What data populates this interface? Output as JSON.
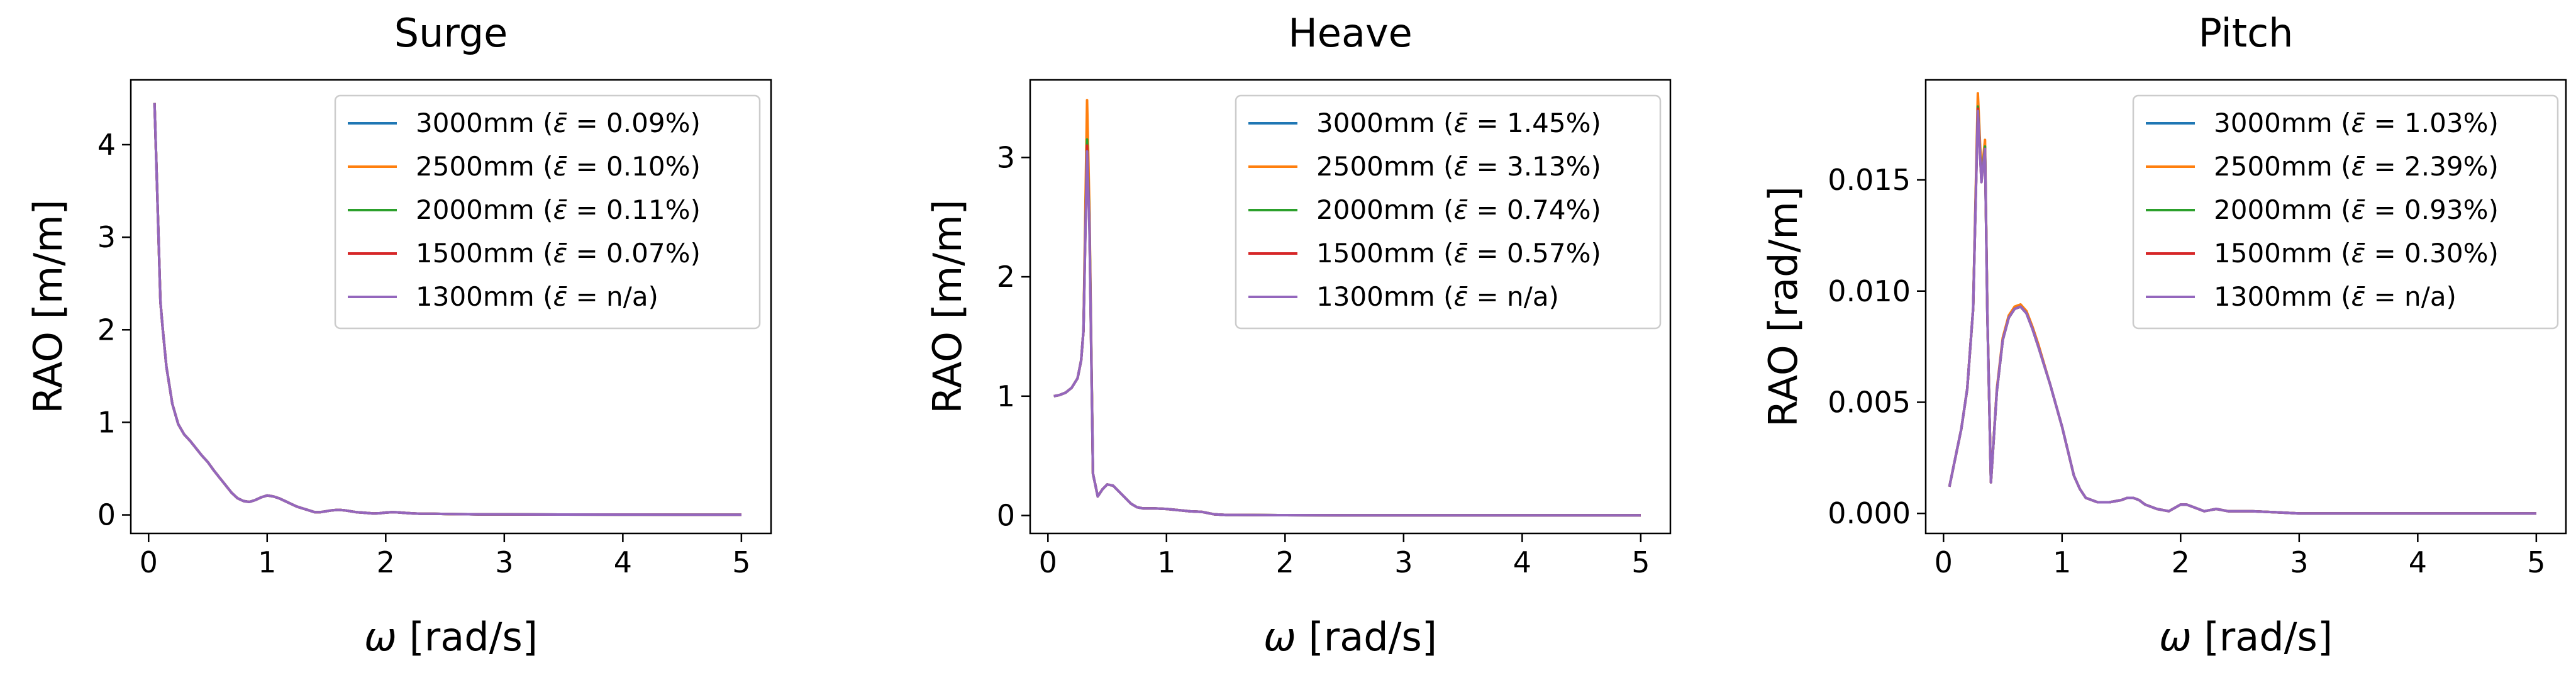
{
  "chart_data": [
    {
      "type": "line",
      "title": "Surge",
      "xlabel": "ω [rad/s]",
      "ylabel": "RAO [m/m]",
      "xlim": [
        -0.15,
        5.25
      ],
      "ylim": [
        -0.2,
        4.7
      ],
      "xticks": [
        "0",
        "1",
        "2",
        "3",
        "4",
        "5"
      ],
      "yticks": [
        "0",
        "1",
        "2",
        "3",
        "4"
      ],
      "legend_position": "upper right",
      "grid": false,
      "x": [
        0.05,
        0.07,
        0.1,
        0.12,
        0.15,
        0.2,
        0.25,
        0.3,
        0.35,
        0.4,
        0.45,
        0.5,
        0.55,
        0.6,
        0.65,
        0.7,
        0.75,
        0.8,
        0.85,
        0.9,
        0.95,
        1.0,
        1.05,
        1.1,
        1.15,
        1.2,
        1.25,
        1.3,
        1.35,
        1.4,
        1.45,
        1.5,
        1.55,
        1.6,
        1.65,
        1.7,
        1.75,
        1.8,
        1.85,
        1.9,
        1.95,
        2.0,
        2.05,
        2.1,
        2.15,
        2.2,
        2.25,
        2.3,
        2.4,
        2.5,
        2.6,
        2.7,
        2.8,
        3.0,
        3.5,
        4.0,
        4.5,
        5.0
      ],
      "series": [
        {
          "name": "3000mm ($\\bar{\\varepsilon}$ = 0.09%)",
          "color": "#1f77b4",
          "values": [
            4.45,
            3.6,
            2.3,
            2.0,
            1.6,
            1.2,
            0.98,
            0.87,
            0.8,
            0.72,
            0.64,
            0.57,
            0.48,
            0.4,
            0.32,
            0.24,
            0.18,
            0.15,
            0.14,
            0.16,
            0.19,
            0.21,
            0.2,
            0.18,
            0.15,
            0.12,
            0.09,
            0.07,
            0.05,
            0.03,
            0.03,
            0.04,
            0.05,
            0.055,
            0.05,
            0.04,
            0.03,
            0.025,
            0.02,
            0.015,
            0.018,
            0.025,
            0.03,
            0.028,
            0.022,
            0.018,
            0.015,
            0.012,
            0.012,
            0.01,
            0.008,
            0.007,
            0.006,
            0.005,
            0.004,
            0.003,
            0.002,
            0.002
          ]
        },
        {
          "name": "2500mm ($\\bar{\\varepsilon}$ = 0.10%)",
          "color": "#ff7f0e",
          "values": [
            4.45,
            3.6,
            2.3,
            2.0,
            1.6,
            1.2,
            0.98,
            0.87,
            0.8,
            0.72,
            0.64,
            0.57,
            0.48,
            0.4,
            0.32,
            0.24,
            0.18,
            0.15,
            0.14,
            0.16,
            0.19,
            0.21,
            0.2,
            0.18,
            0.15,
            0.12,
            0.09,
            0.07,
            0.05,
            0.03,
            0.03,
            0.04,
            0.05,
            0.055,
            0.05,
            0.04,
            0.03,
            0.025,
            0.02,
            0.015,
            0.018,
            0.025,
            0.03,
            0.028,
            0.022,
            0.018,
            0.015,
            0.012,
            0.012,
            0.01,
            0.008,
            0.007,
            0.006,
            0.005,
            0.004,
            0.003,
            0.002,
            0.002
          ]
        },
        {
          "name": "2000mm ($\\bar{\\varepsilon}$ = 0.11%)",
          "color": "#2ca02c",
          "values": [
            4.45,
            3.6,
            2.3,
            2.0,
            1.6,
            1.2,
            0.98,
            0.87,
            0.8,
            0.72,
            0.64,
            0.57,
            0.48,
            0.4,
            0.32,
            0.24,
            0.18,
            0.15,
            0.14,
            0.16,
            0.19,
            0.21,
            0.2,
            0.18,
            0.15,
            0.12,
            0.09,
            0.07,
            0.05,
            0.03,
            0.03,
            0.04,
            0.05,
            0.055,
            0.05,
            0.04,
            0.03,
            0.025,
            0.02,
            0.015,
            0.018,
            0.025,
            0.03,
            0.028,
            0.022,
            0.018,
            0.015,
            0.012,
            0.012,
            0.01,
            0.008,
            0.007,
            0.006,
            0.005,
            0.004,
            0.003,
            0.002,
            0.002
          ]
        },
        {
          "name": "1500mm ($\\bar{\\varepsilon}$ = 0.07%)",
          "color": "#d62728",
          "values": [
            4.45,
            3.6,
            2.3,
            2.0,
            1.6,
            1.2,
            0.98,
            0.87,
            0.8,
            0.72,
            0.64,
            0.57,
            0.48,
            0.4,
            0.32,
            0.24,
            0.18,
            0.15,
            0.14,
            0.16,
            0.19,
            0.21,
            0.2,
            0.18,
            0.15,
            0.12,
            0.09,
            0.07,
            0.05,
            0.03,
            0.03,
            0.04,
            0.05,
            0.055,
            0.05,
            0.04,
            0.03,
            0.025,
            0.02,
            0.015,
            0.018,
            0.025,
            0.03,
            0.028,
            0.022,
            0.018,
            0.015,
            0.012,
            0.012,
            0.01,
            0.008,
            0.007,
            0.006,
            0.005,
            0.004,
            0.003,
            0.002,
            0.002
          ]
        },
        {
          "name": "1300mm ($\\bar{\\varepsilon}$ = n/a)",
          "color": "#9467bd",
          "values": [
            4.45,
            3.6,
            2.3,
            2.0,
            1.6,
            1.2,
            0.98,
            0.87,
            0.8,
            0.72,
            0.64,
            0.57,
            0.48,
            0.4,
            0.32,
            0.24,
            0.18,
            0.15,
            0.14,
            0.16,
            0.19,
            0.21,
            0.2,
            0.18,
            0.15,
            0.12,
            0.09,
            0.07,
            0.05,
            0.03,
            0.03,
            0.04,
            0.05,
            0.055,
            0.05,
            0.04,
            0.03,
            0.025,
            0.02,
            0.015,
            0.018,
            0.025,
            0.03,
            0.028,
            0.022,
            0.018,
            0.015,
            0.012,
            0.012,
            0.01,
            0.008,
            0.007,
            0.006,
            0.005,
            0.004,
            0.003,
            0.002,
            0.002
          ]
        }
      ]
    },
    {
      "type": "line",
      "title": "Heave",
      "xlabel": "ω [rad/s]",
      "ylabel": "RAO [m/m]",
      "xlim": [
        -0.15,
        5.25
      ],
      "ylim": [
        -0.15,
        3.65
      ],
      "xticks": [
        "0",
        "1",
        "2",
        "3",
        "4",
        "5"
      ],
      "yticks": [
        "0",
        "1",
        "2",
        "3"
      ],
      "legend_position": "upper right",
      "grid": false,
      "x": [
        0.05,
        0.1,
        0.15,
        0.2,
        0.25,
        0.28,
        0.3,
        0.33,
        0.35,
        0.38,
        0.42,
        0.46,
        0.5,
        0.55,
        0.6,
        0.65,
        0.7,
        0.75,
        0.8,
        0.85,
        0.9,
        1.0,
        1.1,
        1.2,
        1.3,
        1.4,
        1.5,
        1.6,
        2.0,
        2.5,
        3.0,
        4.0,
        5.0
      ],
      "series": [
        {
          "name": "3000mm ($\\bar{\\varepsilon}$ = 1.45%)",
          "color": "#1f77b4",
          "values": [
            1.0,
            1.01,
            1.03,
            1.07,
            1.15,
            1.3,
            1.55,
            3.25,
            2.5,
            0.35,
            0.16,
            0.22,
            0.26,
            0.25,
            0.2,
            0.15,
            0.1,
            0.07,
            0.06,
            0.06,
            0.06,
            0.055,
            0.045,
            0.035,
            0.03,
            0.01,
            0.005,
            0.005,
            0.003,
            0.002,
            0.002,
            0.001,
            0.001
          ]
        },
        {
          "name": "2500mm ($\\bar{\\varepsilon}$ = 3.13%)",
          "color": "#ff7f0e",
          "values": [
            1.0,
            1.01,
            1.03,
            1.07,
            1.15,
            1.3,
            1.55,
            3.48,
            2.55,
            0.35,
            0.16,
            0.22,
            0.26,
            0.25,
            0.2,
            0.15,
            0.1,
            0.07,
            0.06,
            0.06,
            0.06,
            0.055,
            0.045,
            0.035,
            0.03,
            0.01,
            0.005,
            0.005,
            0.003,
            0.002,
            0.002,
            0.001,
            0.001
          ]
        },
        {
          "name": "2000mm ($\\bar{\\varepsilon}$ = 0.74%)",
          "color": "#2ca02c",
          "values": [
            1.0,
            1.01,
            1.03,
            1.07,
            1.15,
            1.3,
            1.55,
            3.15,
            2.45,
            0.35,
            0.16,
            0.22,
            0.26,
            0.25,
            0.2,
            0.15,
            0.1,
            0.07,
            0.06,
            0.06,
            0.06,
            0.055,
            0.045,
            0.035,
            0.03,
            0.01,
            0.005,
            0.005,
            0.003,
            0.002,
            0.002,
            0.001,
            0.001
          ]
        },
        {
          "name": "1500mm ($\\bar{\\varepsilon}$ = 0.57%)",
          "color": "#d62728",
          "values": [
            1.0,
            1.01,
            1.03,
            1.07,
            1.15,
            1.3,
            1.55,
            3.1,
            2.42,
            0.35,
            0.16,
            0.22,
            0.26,
            0.25,
            0.2,
            0.15,
            0.1,
            0.07,
            0.06,
            0.06,
            0.06,
            0.055,
            0.045,
            0.035,
            0.03,
            0.01,
            0.005,
            0.005,
            0.003,
            0.002,
            0.002,
            0.001,
            0.001
          ]
        },
        {
          "name": "1300mm ($\\bar{\\varepsilon}$ = n/a)",
          "color": "#9467bd",
          "values": [
            1.0,
            1.01,
            1.03,
            1.07,
            1.15,
            1.3,
            1.55,
            3.05,
            2.4,
            0.35,
            0.16,
            0.22,
            0.26,
            0.25,
            0.2,
            0.15,
            0.1,
            0.07,
            0.06,
            0.06,
            0.06,
            0.055,
            0.045,
            0.035,
            0.03,
            0.01,
            0.005,
            0.005,
            0.003,
            0.002,
            0.002,
            0.001,
            0.001
          ]
        }
      ]
    },
    {
      "type": "line",
      "title": "Pitch",
      "xlabel": "ω [rad/s]",
      "ylabel": "RAO [rad/m]",
      "xlim": [
        -0.15,
        5.25
      ],
      "ylim": [
        -0.0009,
        0.0195
      ],
      "xticks": [
        "0",
        "1",
        "2",
        "3",
        "4",
        "5"
      ],
      "yticks": [
        "0.000",
        "0.005",
        "0.010",
        "0.015"
      ],
      "legend_position": "upper right",
      "grid": false,
      "x": [
        0.05,
        0.1,
        0.15,
        0.2,
        0.25,
        0.29,
        0.32,
        0.35,
        0.37,
        0.4,
        0.45,
        0.5,
        0.55,
        0.6,
        0.65,
        0.7,
        0.75,
        0.8,
        0.9,
        1.0,
        1.05,
        1.1,
        1.15,
        1.2,
        1.3,
        1.4,
        1.5,
        1.55,
        1.6,
        1.65,
        1.7,
        1.8,
        1.9,
        2.0,
        2.05,
        2.1,
        2.2,
        2.3,
        2.4,
        2.5,
        2.6,
        2.8,
        3.0,
        3.5,
        4.0,
        4.5,
        5.0
      ],
      "series": [
        {
          "name": "3000mm ($\\bar{\\varepsilon}$ = 1.03%)",
          "color": "#1f77b4",
          "values": [
            0.0012,
            0.0025,
            0.0038,
            0.0056,
            0.0092,
            0.0184,
            0.015,
            0.0165,
            0.009,
            0.0014,
            0.0055,
            0.0078,
            0.0088,
            0.0092,
            0.0093,
            0.009,
            0.0083,
            0.0075,
            0.0058,
            0.0039,
            0.0028,
            0.0017,
            0.0011,
            0.0007,
            0.0005,
            0.0005,
            0.0006,
            0.0007,
            0.0007,
            0.0006,
            0.0004,
            0.0002,
            0.0001,
            0.0004,
            0.0004,
            0.0003,
            0.0001,
            0.0002,
            0.0001,
            0.0001,
            0.0001,
            5e-05,
            0.0,
            0.0,
            0.0,
            0.0,
            0.0
          ]
        },
        {
          "name": "2500mm ($\\bar{\\varepsilon}$ = 2.39%)",
          "color": "#ff7f0e",
          "values": [
            0.0012,
            0.0025,
            0.0038,
            0.0056,
            0.0092,
            0.0189,
            0.0152,
            0.0168,
            0.0091,
            0.0014,
            0.0056,
            0.0079,
            0.0089,
            0.0093,
            0.0094,
            0.0091,
            0.0084,
            0.0076,
            0.0058,
            0.0039,
            0.0028,
            0.0017,
            0.0011,
            0.0007,
            0.0005,
            0.0005,
            0.0006,
            0.0007,
            0.0007,
            0.0006,
            0.0004,
            0.0002,
            0.0001,
            0.0004,
            0.0004,
            0.0003,
            0.0001,
            0.0002,
            0.0001,
            0.0001,
            0.0001,
            5e-05,
            0.0,
            0.0,
            0.0,
            0.0,
            0.0
          ]
        },
        {
          "name": "2000mm ($\\bar{\\varepsilon}$ = 0.93%)",
          "color": "#2ca02c",
          "values": [
            0.0012,
            0.0025,
            0.0038,
            0.0056,
            0.0092,
            0.0183,
            0.015,
            0.0165,
            0.009,
            0.0014,
            0.0055,
            0.0078,
            0.0088,
            0.0092,
            0.0093,
            0.009,
            0.0083,
            0.0075,
            0.0058,
            0.0039,
            0.0028,
            0.0017,
            0.0011,
            0.0007,
            0.0005,
            0.0005,
            0.0006,
            0.0007,
            0.0007,
            0.0006,
            0.0004,
            0.0002,
            0.0001,
            0.0004,
            0.0004,
            0.0003,
            0.0001,
            0.0002,
            0.0001,
            0.0001,
            0.0001,
            5e-05,
            0.0,
            0.0,
            0.0,
            0.0,
            0.0
          ]
        },
        {
          "name": "1500mm ($\\bar{\\varepsilon}$ = 0.30%)",
          "color": "#d62728",
          "values": [
            0.0012,
            0.0025,
            0.0038,
            0.0056,
            0.0092,
            0.0182,
            0.0149,
            0.0164,
            0.009,
            0.0014,
            0.0055,
            0.0078,
            0.0088,
            0.0092,
            0.0093,
            0.009,
            0.0083,
            0.0075,
            0.0058,
            0.0039,
            0.0028,
            0.0017,
            0.0011,
            0.0007,
            0.0005,
            0.0005,
            0.0006,
            0.0007,
            0.0007,
            0.0006,
            0.0004,
            0.0002,
            0.0001,
            0.0004,
            0.0004,
            0.0003,
            0.0001,
            0.0002,
            0.0001,
            0.0001,
            0.0001,
            5e-05,
            0.0,
            0.0,
            0.0,
            0.0,
            0.0
          ]
        },
        {
          "name": "1300mm ($\\bar{\\varepsilon}$ = n/a)",
          "color": "#9467bd",
          "values": [
            0.0012,
            0.0025,
            0.0038,
            0.0056,
            0.0092,
            0.0181,
            0.0149,
            0.0164,
            0.009,
            0.0014,
            0.0055,
            0.0078,
            0.0088,
            0.0092,
            0.0093,
            0.009,
            0.0083,
            0.0075,
            0.0058,
            0.0039,
            0.0028,
            0.0017,
            0.0011,
            0.0007,
            0.0005,
            0.0005,
            0.0006,
            0.0007,
            0.0007,
            0.0006,
            0.0004,
            0.0002,
            0.0001,
            0.0004,
            0.0004,
            0.0003,
            0.0001,
            0.0002,
            0.0001,
            0.0001,
            0.0001,
            5e-05,
            0.0,
            0.0,
            0.0,
            0.0,
            0.0
          ]
        }
      ]
    }
  ]
}
